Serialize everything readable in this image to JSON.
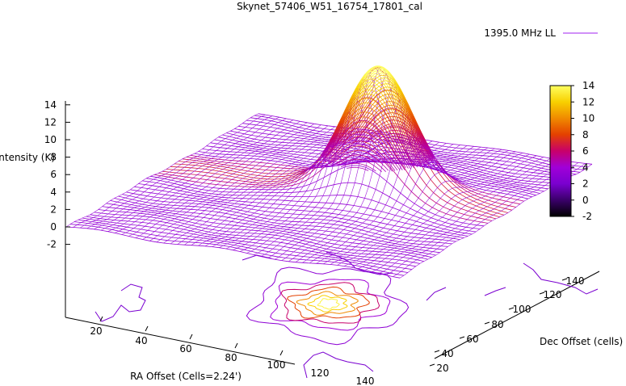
{
  "chart_data": {
    "type": "surface3d",
    "title": "Skynet_57406_W51_16754_17801_cal",
    "legend": {
      "label": "1395.0 MHz LL",
      "placement": "top-right",
      "line_color": "#a020f0"
    },
    "zlabel": "Intensity (K)",
    "xlabel": "RA Offset (Cells=2.24')",
    "ylabel": "Dec Offset (cells)",
    "z_ticks": [
      "14",
      "12",
      "10",
      "8",
      "6",
      "4",
      "2",
      "0",
      "-2"
    ],
    "x_ticks": [
      "20",
      "40",
      "60",
      "80",
      "100",
      "120",
      "140"
    ],
    "y_ticks": [
      "20",
      "40",
      "60",
      "80",
      "100",
      "120",
      "140"
    ],
    "colorbar": {
      "ticks": [
        "14",
        "12",
        "10",
        "8",
        "6",
        "4",
        "2",
        "0",
        "-2"
      ],
      "range": [
        -2,
        14
      ],
      "palette": [
        "#000000",
        "#3a006a",
        "#7a00d0",
        "#a000d8",
        "#c8006a",
        "#e44000",
        "#f08a00",
        "#f8d000",
        "#ffff60"
      ]
    },
    "surface": {
      "baseline_intensity": 2,
      "peak_intensity": 14,
      "peak_position_ra_cells": 93,
      "peak_position_dec_cells": 75,
      "grid": "on"
    }
  }
}
